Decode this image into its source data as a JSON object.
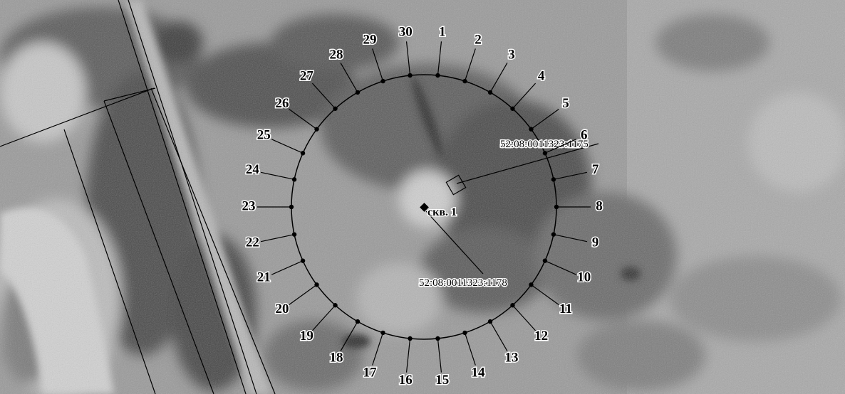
{
  "map": {
    "point_labels": [
      "1",
      "2",
      "3",
      "4",
      "5",
      "6",
      "7",
      "8",
      "9",
      "10",
      "11",
      "12",
      "13",
      "14",
      "15",
      "16",
      "17",
      "18",
      "19",
      "20",
      "21",
      "22",
      "23",
      "24",
      "25",
      "26",
      "27",
      "28",
      "29",
      "30"
    ],
    "parcels": [
      {
        "label": "52:08:0011323:1175"
      },
      {
        "label": "52:08:0011323:1178"
      }
    ],
    "well": {
      "label": "скв. 1"
    },
    "colors": {
      "imagery_base": "#8f8f8f",
      "vegetation": "#3a3a3a",
      "boundary": "#000000",
      "label_halo": "#ffffff"
    }
  }
}
